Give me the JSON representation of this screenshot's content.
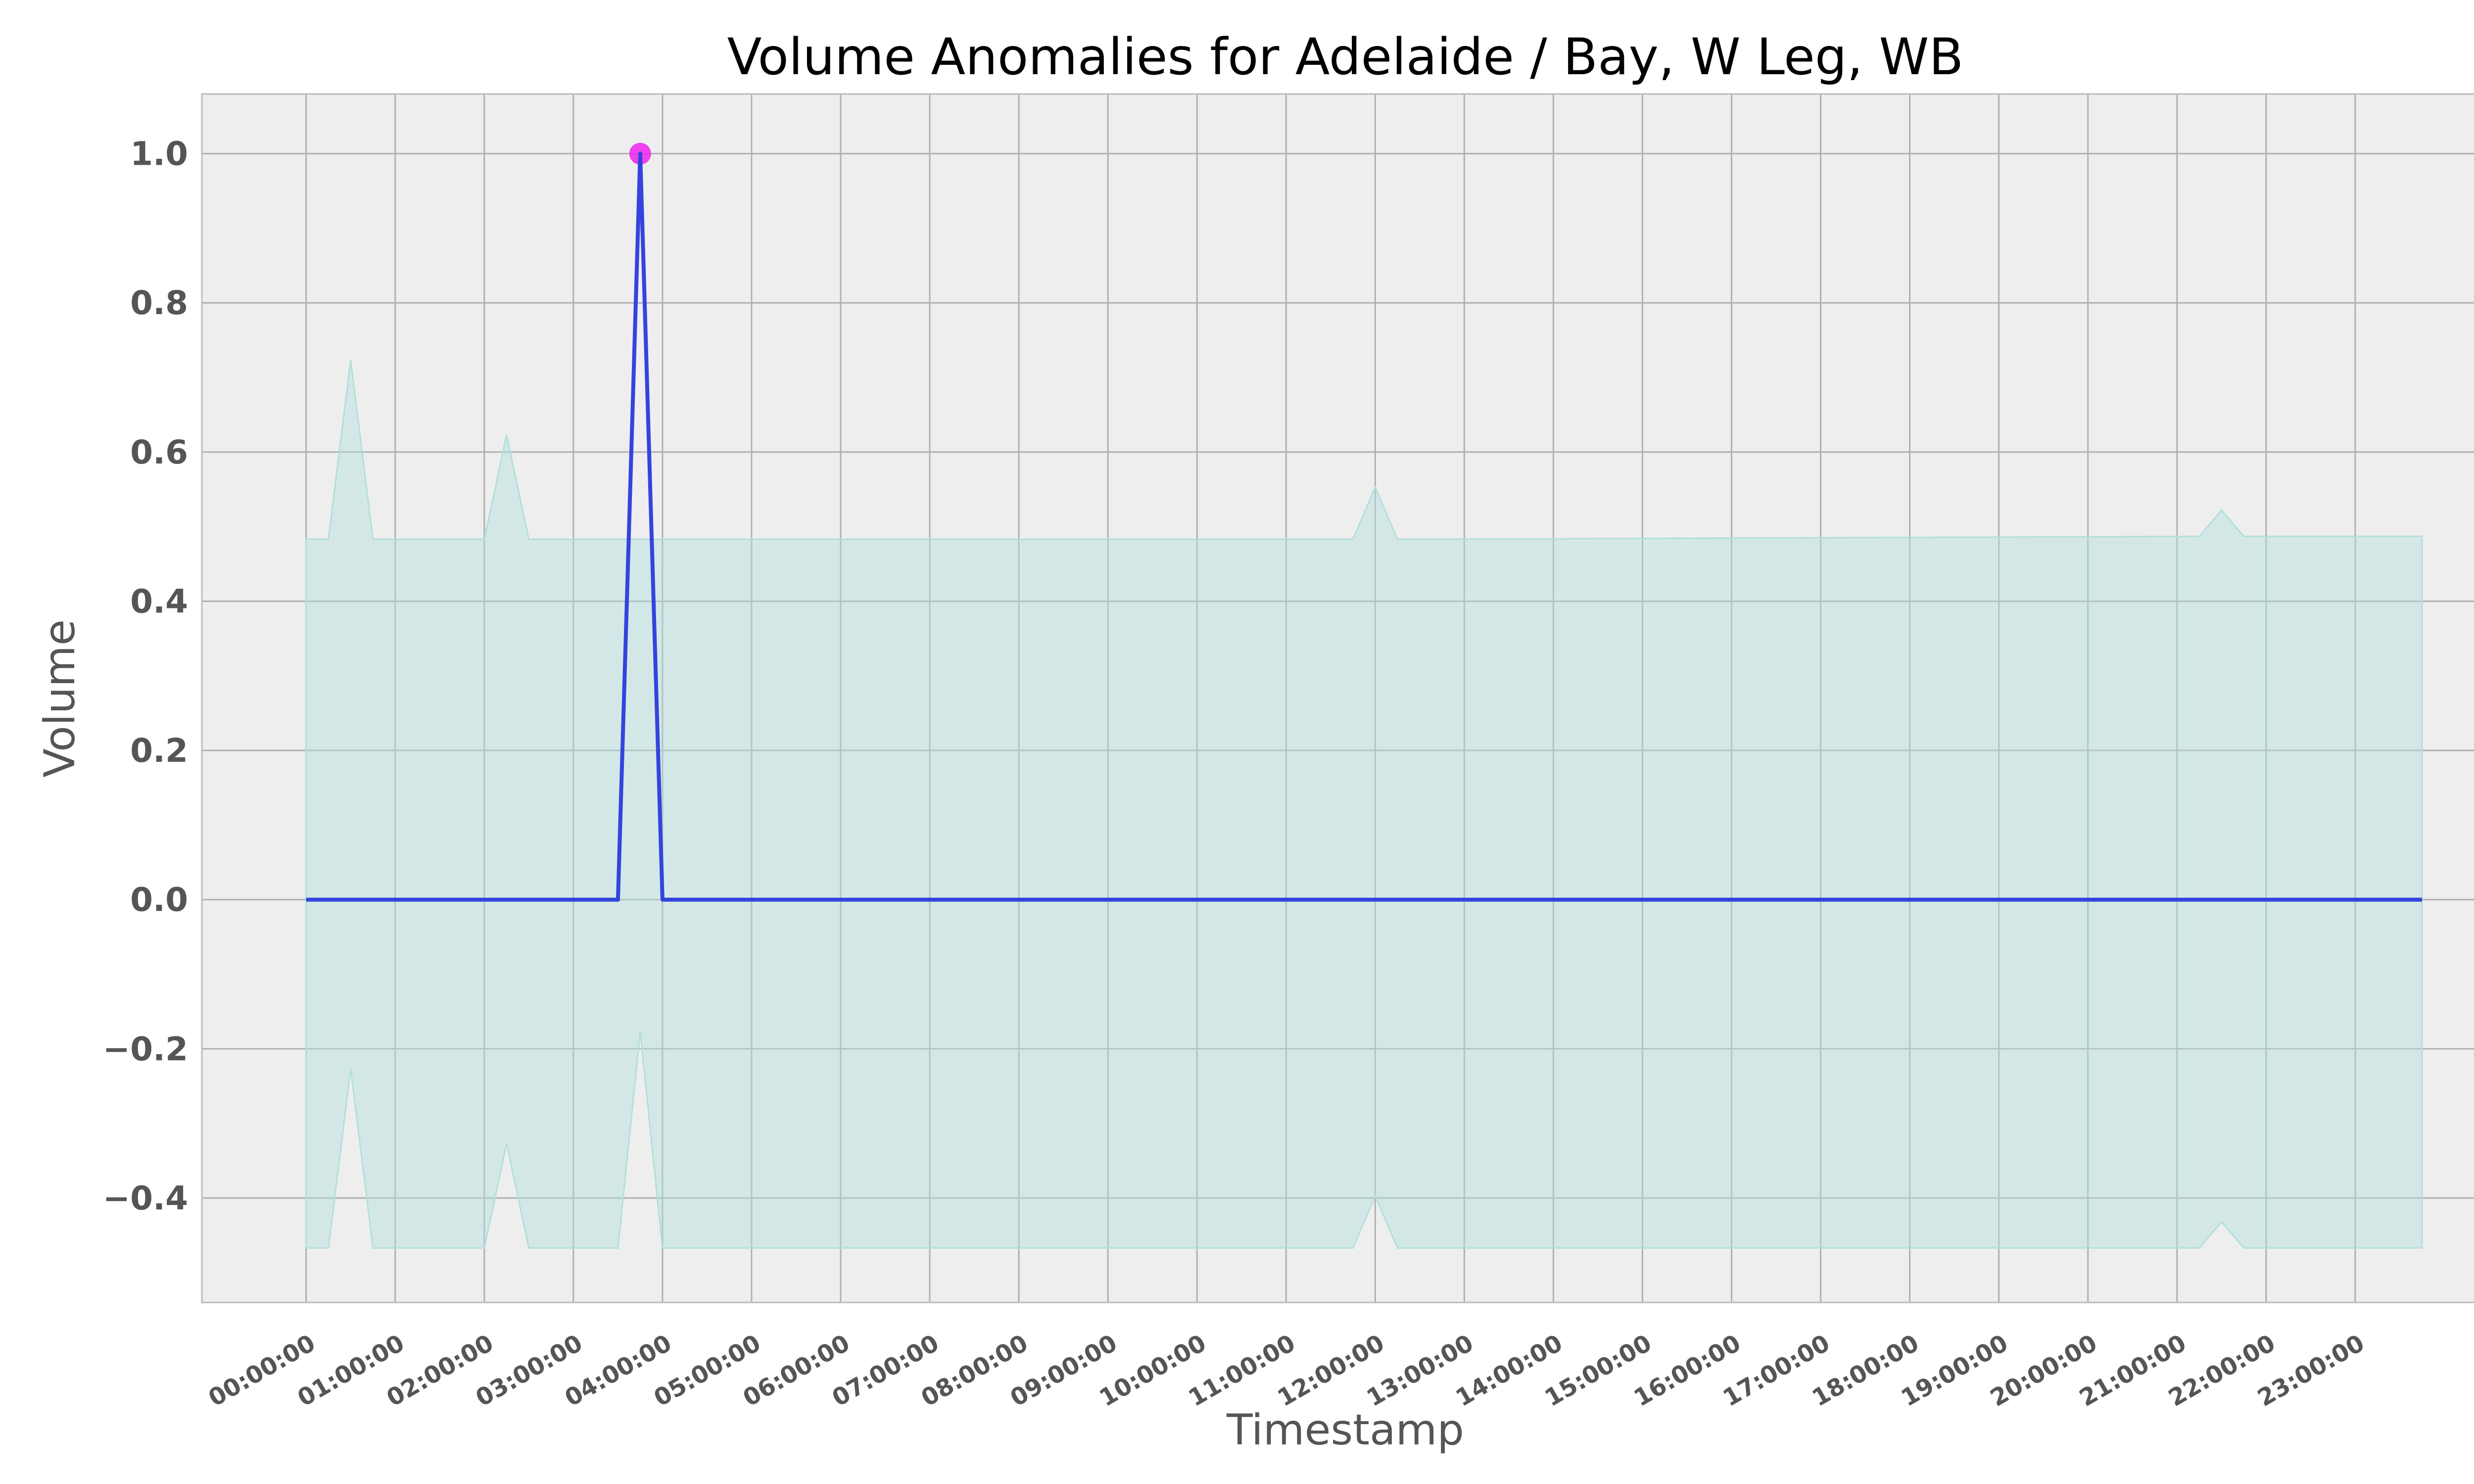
{
  "chart_data": {
    "type": "line",
    "title": "Volume Anomalies for Adelaide / Bay, W Leg, WB",
    "xlabel": "Timestamp",
    "ylabel": "Volume",
    "ylim": [
      -0.54,
      1.08
    ],
    "yticks": [
      -0.4,
      -0.2,
      0.0,
      0.2,
      0.4,
      0.6,
      0.8,
      1.0
    ],
    "ytick_labels": [
      "−0.4",
      "−0.2",
      "0.0",
      "0.2",
      "0.4",
      "0.6",
      "0.8",
      "1.0"
    ],
    "xticks_hours": [
      0,
      1,
      2,
      3,
      4,
      5,
      6,
      7,
      8,
      9,
      10,
      11,
      12,
      13,
      14,
      15,
      16,
      17,
      18,
      19,
      20,
      21,
      22,
      23
    ],
    "xtick_labels": [
      "00:00:00",
      "01:00:00",
      "02:00:00",
      "03:00:00",
      "04:00:00",
      "05:00:00",
      "06:00:00",
      "07:00:00",
      "08:00:00",
      "09:00:00",
      "10:00:00",
      "11:00:00",
      "12:00:00",
      "13:00:00",
      "14:00:00",
      "15:00:00",
      "16:00:00",
      "17:00:00",
      "18:00:00",
      "19:00:00",
      "20:00:00",
      "21:00:00",
      "22:00:00",
      "23:00:00"
    ],
    "xlim_hours": [
      -1.17,
      24.5
    ],
    "grid": true,
    "series": [
      {
        "role": "volume",
        "color": "#3344dd",
        "x_hours": [
          0,
          3.5,
          3.75,
          4.0,
          23.75
        ],
        "y": [
          0,
          0,
          1.0,
          0,
          0
        ]
      }
    ],
    "band": {
      "color": "#b2dfdb",
      "x_hours": [
        0,
        0.25,
        0.5,
        0.75,
        2.0,
        2.25,
        2.5,
        3.5,
        3.75,
        4.0,
        11.75,
        12.0,
        12.25,
        21.25,
        21.5,
        21.75,
        23.75
      ],
      "upper": [
        0.483,
        0.483,
        0.723,
        0.483,
        0.483,
        0.623,
        0.483,
        0.483,
        0.483,
        0.483,
        0.483,
        0.553,
        0.483,
        0.487,
        0.522,
        0.487,
        0.487
      ],
      "lower": [
        -0.467,
        -0.467,
        -0.227,
        -0.467,
        -0.467,
        -0.327,
        -0.467,
        -0.467,
        -0.177,
        -0.467,
        -0.467,
        -0.397,
        -0.467,
        -0.467,
        -0.432,
        -0.467,
        -0.467
      ]
    },
    "anomalies": {
      "color": "#ee22ee",
      "x_hours": [
        3.75
      ],
      "y": [
        1.0
      ]
    },
    "colors": {
      "plot_background": "#eeeeee",
      "grid": "#b0b0b0",
      "frame": "#bbbbbb"
    }
  }
}
